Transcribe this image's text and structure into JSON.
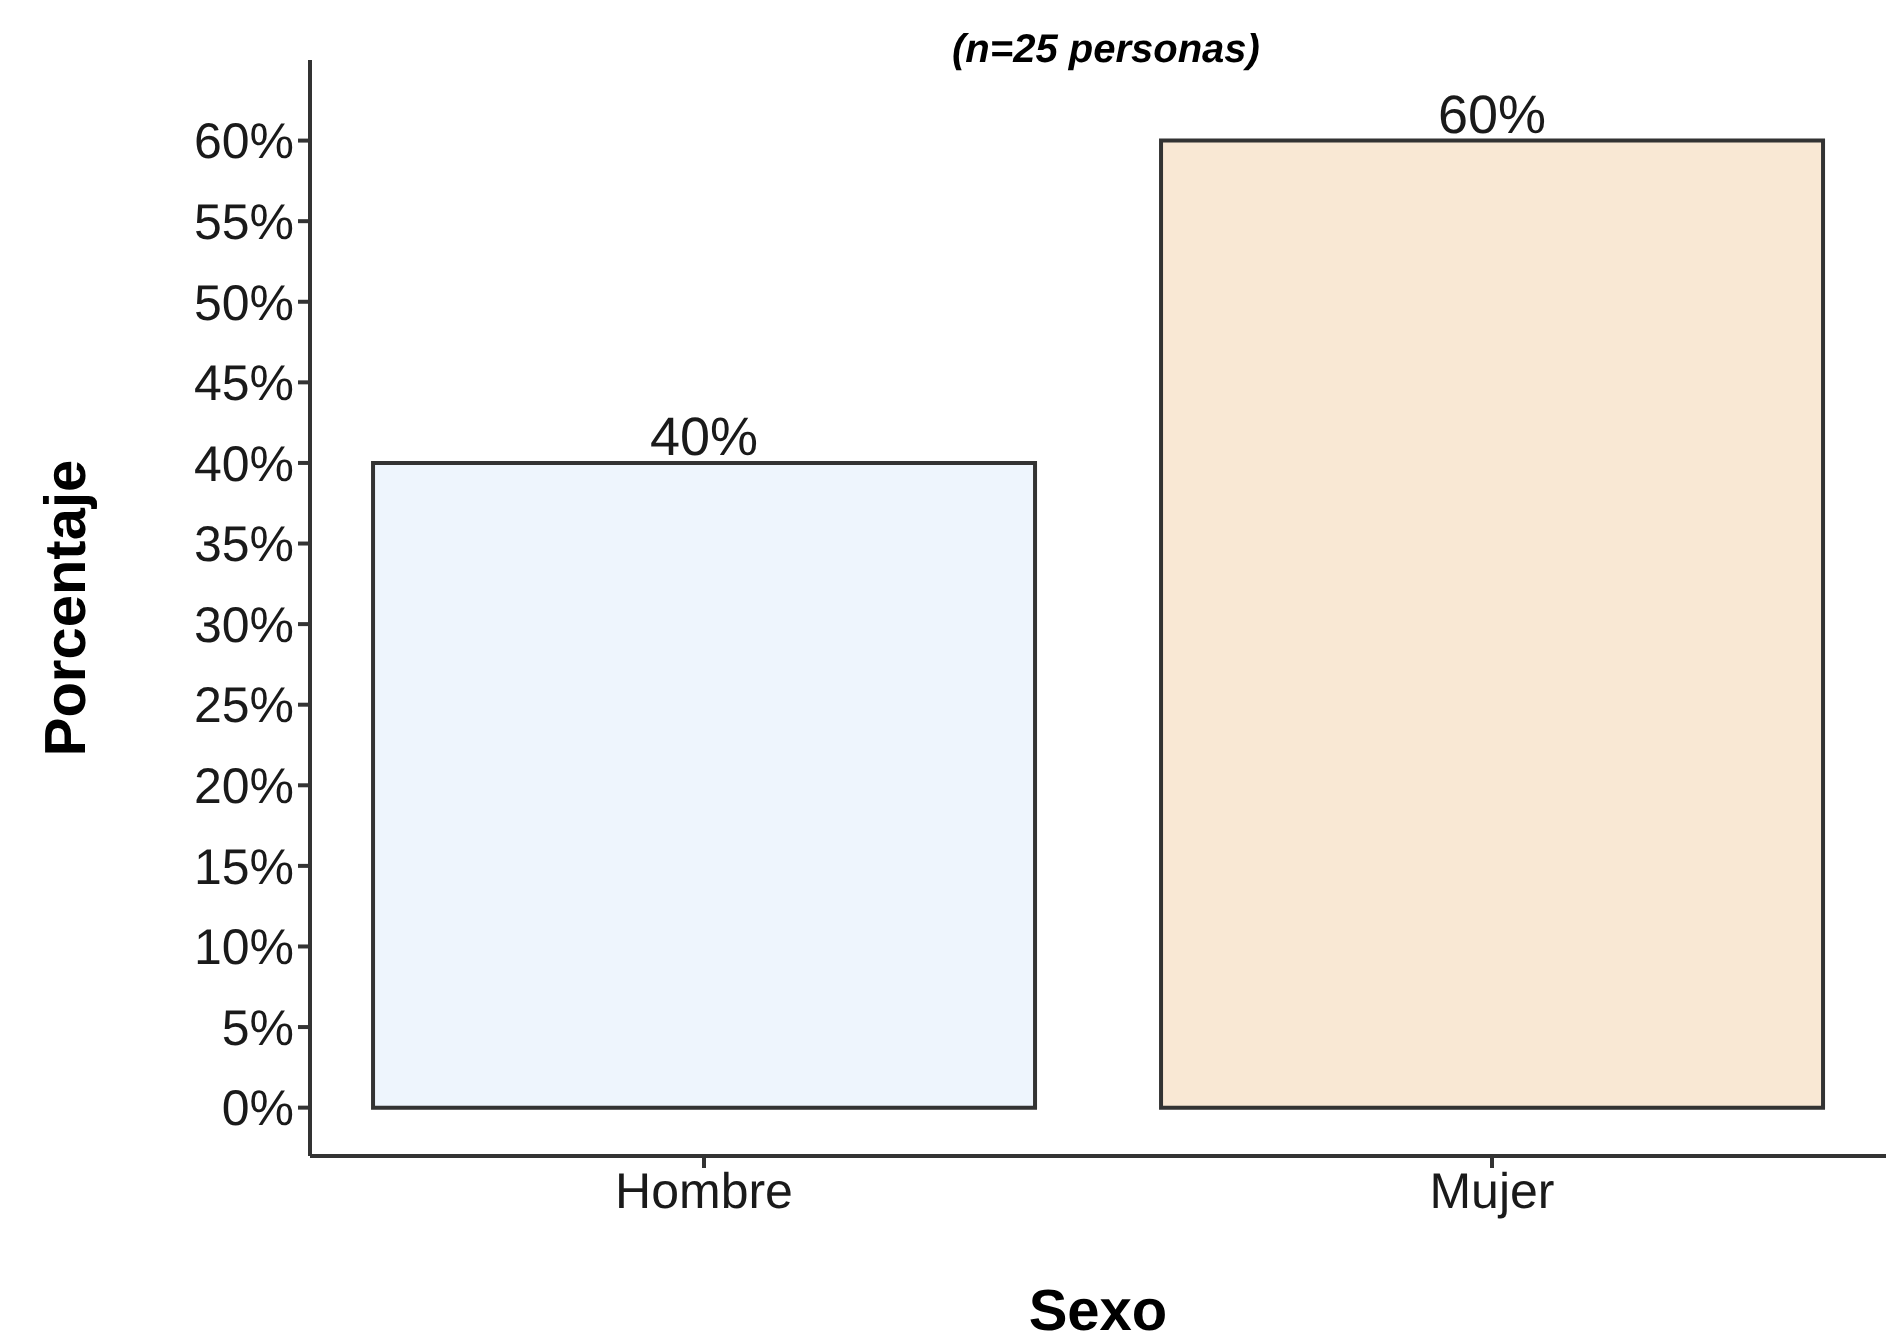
{
  "chart_data": {
    "type": "bar",
    "title": "(n=25 personas)",
    "xlabel": "Sexo",
    "ylabel": "Porcentaje",
    "categories": [
      "Hombre",
      "Mujer"
    ],
    "values": [
      40,
      60
    ],
    "colors": [
      "#eef5fd",
      "#f9e8d4"
    ],
    "value_labels": [
      "40%",
      "60%"
    ],
    "ylim": [
      -3,
      65
    ],
    "yticks": [
      {
        "value": 0,
        "label": "0%"
      },
      {
        "value": 5,
        "label": "5%"
      },
      {
        "value": 10,
        "label": "10%"
      },
      {
        "value": 15,
        "label": "15%"
      },
      {
        "value": 20,
        "label": "20%"
      },
      {
        "value": 25,
        "label": "25%"
      },
      {
        "value": 30,
        "label": "30%"
      },
      {
        "value": 35,
        "label": "35%"
      },
      {
        "value": 40,
        "label": "40%"
      },
      {
        "value": 45,
        "label": "45%"
      },
      {
        "value": 50,
        "label": "50%"
      },
      {
        "value": 55,
        "label": "55%"
      },
      {
        "value": 60,
        "label": "60%"
      }
    ],
    "grid": false,
    "legend": false
  }
}
